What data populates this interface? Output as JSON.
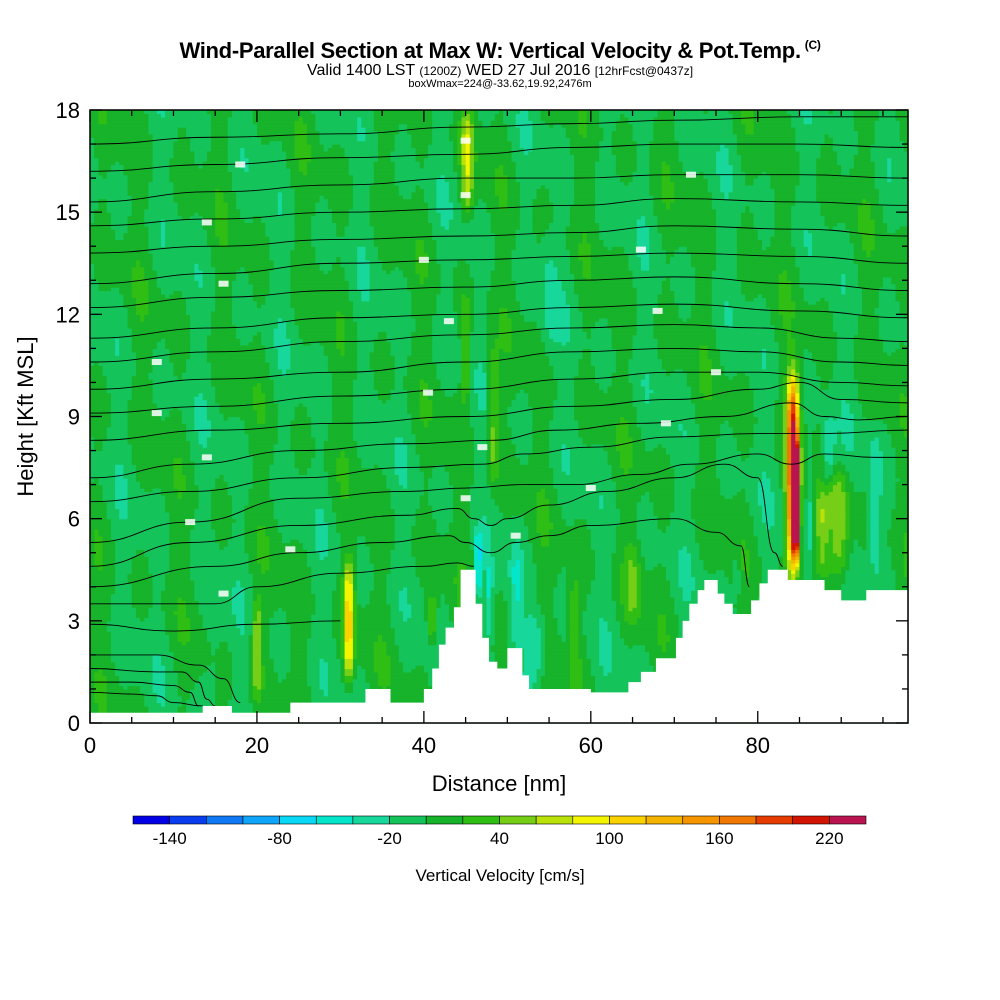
{
  "title": {
    "main": "Wind-Parallel Section at Max W: Vertical Velocity & Pot.Temp.",
    "copyright": "(C)",
    "valid_prefix": "Valid 1400 LST",
    "valid_z": "(1200Z)",
    "valid_date": "WED 27 Jul 2016",
    "valid_fcst": "[12hrFcst@0437z]",
    "box_info": "boxWmax=224@-33.62,19.92,2476m"
  },
  "chart_data": {
    "type": "heatmap",
    "xlabel": "Distance [nm]",
    "ylabel": "Height [Kft MSL]",
    "xlim": [
      0,
      98
    ],
    "ylim": [
      0,
      18
    ],
    "x_ticks": [
      0,
      20,
      40,
      60,
      80
    ],
    "y_ticks": [
      0,
      3,
      6,
      9,
      12,
      15,
      18
    ],
    "background_w": 0,
    "terrain": [
      [
        0,
        0.3
      ],
      [
        10,
        0.3
      ],
      [
        13.5,
        0.3
      ],
      [
        13.5,
        0.5
      ],
      [
        17,
        0.5
      ],
      [
        17,
        0.3
      ],
      [
        24,
        0.3
      ],
      [
        24,
        0.6
      ],
      [
        33,
        0.6
      ],
      [
        33,
        1.0
      ],
      [
        36,
        1.0
      ],
      [
        36,
        0.6
      ],
      [
        40,
        0.6
      ],
      [
        40,
        1.0
      ],
      [
        41,
        1.0
      ],
      [
        41,
        1.6
      ],
      [
        41.8,
        1.6
      ],
      [
        41.8,
        2.3
      ],
      [
        42.6,
        2.3
      ],
      [
        42.6,
        2.8
      ],
      [
        43.6,
        2.8
      ],
      [
        43.6,
        3.4
      ],
      [
        44.4,
        3.4
      ],
      [
        44.4,
        4.5
      ],
      [
        46.2,
        4.5
      ],
      [
        46.2,
        3.5
      ],
      [
        47,
        3.5
      ],
      [
        47,
        2.5
      ],
      [
        47.8,
        2.5
      ],
      [
        47.8,
        1.8
      ],
      [
        48.8,
        1.8
      ],
      [
        48.8,
        1.6
      ],
      [
        50,
        1.6
      ],
      [
        50,
        2.2
      ],
      [
        51.8,
        2.2
      ],
      [
        51.8,
        1.4
      ],
      [
        52.6,
        1.4
      ],
      [
        52.6,
        1.0
      ],
      [
        60,
        1.0
      ],
      [
        60,
        0.9
      ],
      [
        64.5,
        0.9
      ],
      [
        64.5,
        1.2
      ],
      [
        66,
        1.2
      ],
      [
        66,
        1.5
      ],
      [
        67.8,
        1.5
      ],
      [
        67.8,
        1.9
      ],
      [
        70.2,
        1.9
      ],
      [
        70.2,
        2.5
      ],
      [
        71,
        2.5
      ],
      [
        71,
        3.0
      ],
      [
        71.8,
        3.0
      ],
      [
        71.8,
        3.5
      ],
      [
        72.8,
        3.5
      ],
      [
        72.8,
        3.9
      ],
      [
        73.6,
        3.9
      ],
      [
        73.6,
        4.2
      ],
      [
        75.2,
        4.2
      ],
      [
        75.2,
        3.8
      ],
      [
        76,
        3.8
      ],
      [
        76,
        3.5
      ],
      [
        77,
        3.5
      ],
      [
        77,
        3.2
      ],
      [
        79.2,
        3.2
      ],
      [
        79.2,
        3.6
      ],
      [
        80.2,
        3.6
      ],
      [
        80.2,
        4.1
      ],
      [
        81.2,
        4.1
      ],
      [
        81.2,
        4.5
      ],
      [
        83.6,
        4.5
      ],
      [
        83.6,
        4.2
      ],
      [
        88,
        4.2
      ],
      [
        88,
        3.9
      ],
      [
        90,
        3.9
      ],
      [
        90,
        3.6
      ],
      [
        93,
        3.6
      ],
      [
        93,
        3.9
      ],
      [
        98,
        3.9
      ]
    ],
    "updrafts": [
      {
        "x": 84.2,
        "zb": 4.5,
        "zt": 10.2,
        "w": 6,
        "peak": 224
      },
      {
        "x": 84.6,
        "zb": 4.8,
        "zt": 8.2,
        "w": 3,
        "peak": 200
      },
      {
        "x": 31.0,
        "zb": 1.3,
        "zt": 4.8,
        "w": 5,
        "peak": 110
      },
      {
        "x": 20.0,
        "zb": 0.8,
        "zt": 3.7,
        "w": 5,
        "peak": 60
      },
      {
        "x": 45.2,
        "zb": 15,
        "zt": 18,
        "w": 6,
        "peak": 70
      },
      {
        "x": 45.0,
        "zb": 9.3,
        "zt": 12.5,
        "w": 4,
        "peak": 50
      },
      {
        "x": 48.3,
        "zb": 7,
        "zt": 11,
        "w": 5,
        "peak": 50
      },
      {
        "x": 89.8,
        "zb": 4.3,
        "zt": 7.5,
        "w": 10,
        "peak": 55
      },
      {
        "x": 87.6,
        "zb": 4.4,
        "zt": 6.8,
        "w": 6,
        "peak": 45
      },
      {
        "x": 41.0,
        "zb": 2.3,
        "zt": 3.8,
        "w": 5,
        "peak": 45
      },
      {
        "x": 58.0,
        "zb": 1.0,
        "zt": 4.4,
        "w": 6,
        "peak": 35
      },
      {
        "x": 65.0,
        "zb": 3.0,
        "zt": 5.3,
        "w": 8,
        "peak": 35
      }
    ],
    "downdrafts": [
      {
        "x": 46.5,
        "zb": 3.6,
        "zt": 5.6,
        "w": 3,
        "peak": -80
      },
      {
        "x": 47.8,
        "zb": 2.5,
        "zt": 4.8,
        "w": 4,
        "peak": -40
      },
      {
        "x": 53.3,
        "zb": 1.1,
        "zt": 3.2,
        "w": 10,
        "peak": -40
      },
      {
        "x": 51.0,
        "zb": 2.0,
        "zt": 5.3,
        "w": 6,
        "peak": -30
      },
      {
        "x": 88.5,
        "zb": 7.0,
        "zt": 9.0,
        "w": 6,
        "peak": -45
      },
      {
        "x": 94.0,
        "zb": 4.5,
        "zt": 8.5,
        "w": 6,
        "peak": -35
      },
      {
        "x": 86.3,
        "zb": 5.0,
        "zt": 8.8,
        "w": 3,
        "peak": -25
      },
      {
        "x": 77.5,
        "zb": 3.7,
        "zt": 5.0,
        "w": 4,
        "peak": -25
      },
      {
        "x": 55.0,
        "zb": 10.5,
        "zt": 14.5,
        "w": 8,
        "peak": -20
      },
      {
        "x": 15.0,
        "zb": 0.5,
        "zt": 4.0,
        "w": 10,
        "peak": -15
      }
    ],
    "isentropes": [
      [
        [
          0,
          0.9
        ],
        [
          5,
          0.85
        ],
        [
          8,
          0.8
        ],
        [
          10,
          0.6
        ],
        [
          13.5,
          0.5
        ]
      ],
      [
        [
          0,
          1.2
        ],
        [
          5,
          1.2
        ],
        [
          10,
          1.1
        ],
        [
          12,
          0.9
        ],
        [
          13,
          0.5
        ]
      ],
      [
        [
          0,
          1.6
        ],
        [
          8,
          1.5
        ],
        [
          11,
          1.5
        ],
        [
          13,
          1.2
        ],
        [
          14,
          0.7
        ],
        [
          15,
          0.5
        ]
      ],
      [
        [
          0,
          2.0
        ],
        [
          8,
          2.0
        ],
        [
          13,
          1.7
        ],
        [
          16,
          1.3
        ],
        [
          18,
          0.6
        ]
      ],
      [
        [
          0,
          2.9
        ],
        [
          10,
          2.7
        ],
        [
          20,
          2.9
        ],
        [
          30,
          3.0
        ]
      ],
      [
        [
          0,
          3.5
        ],
        [
          15,
          3.5
        ],
        [
          20,
          4.0
        ],
        [
          30,
          4.4
        ],
        [
          40,
          4.6
        ],
        [
          44,
          4.7
        ],
        [
          46,
          4.6
        ]
      ],
      [
        [
          0,
          4.0
        ],
        [
          15,
          4.6
        ],
        [
          25,
          5.0
        ],
        [
          35,
          5.3
        ],
        [
          43,
          5.5
        ],
        [
          45,
          5.3
        ],
        [
          48,
          5.0
        ],
        [
          51,
          5.3
        ],
        [
          55,
          5.5
        ],
        [
          60,
          5.8
        ],
        [
          70,
          6.0
        ],
        [
          75,
          5.6
        ],
        [
          78,
          5.2
        ],
        [
          79,
          4.0
        ]
      ],
      [
        [
          0,
          4.6
        ],
        [
          12,
          5.3
        ],
        [
          25,
          5.8
        ],
        [
          38,
          6.1
        ],
        [
          44,
          6.3
        ],
        [
          46,
          6.0
        ],
        [
          48,
          5.8
        ],
        [
          50,
          6.0
        ],
        [
          55,
          6.4
        ],
        [
          62,
          6.8
        ],
        [
          70,
          7.2
        ],
        [
          76,
          7.6
        ],
        [
          80,
          7.2
        ],
        [
          82,
          5.0
        ],
        [
          83,
          4.6
        ]
      ],
      [
        [
          0,
          5.3
        ],
        [
          12,
          5.9
        ],
        [
          25,
          6.6
        ],
        [
          38,
          6.8
        ],
        [
          45,
          6.9
        ],
        [
          52,
          7.0
        ],
        [
          58,
          7.0
        ],
        [
          66,
          7.3
        ],
        [
          72,
          7.6
        ],
        [
          80,
          7.9
        ],
        [
          84,
          7.6
        ],
        [
          88,
          7.9
        ],
        [
          94,
          7.8
        ],
        [
          98,
          7.8
        ]
      ],
      [
        [
          0,
          6.5
        ],
        [
          12,
          6.8
        ],
        [
          25,
          7.2
        ],
        [
          38,
          7.5
        ],
        [
          47,
          7.6
        ],
        [
          52,
          7.9
        ],
        [
          60,
          8.1
        ],
        [
          70,
          8.4
        ],
        [
          80,
          8.5
        ],
        [
          88,
          8.5
        ],
        [
          98,
          8.6
        ]
      ],
      [
        [
          0,
          7.2
        ],
        [
          12,
          7.6
        ],
        [
          25,
          8.0
        ],
        [
          38,
          8.2
        ],
        [
          48,
          8.3
        ],
        [
          56,
          8.6
        ],
        [
          66,
          8.8
        ],
        [
          76,
          9.0
        ],
        [
          84,
          9.4
        ],
        [
          88,
          9.0
        ],
        [
          92,
          8.9
        ],
        [
          98,
          9.0
        ]
      ],
      [
        [
          0,
          8.3
        ],
        [
          15,
          8.6
        ],
        [
          30,
          8.8
        ],
        [
          45,
          9.0
        ],
        [
          58,
          9.3
        ],
        [
          70,
          9.5
        ],
        [
          80,
          9.8
        ],
        [
          85,
          10.0
        ],
        [
          90,
          9.5
        ],
        [
          98,
          9.4
        ]
      ],
      [
        [
          0,
          9.1
        ],
        [
          15,
          9.3
        ],
        [
          30,
          9.6
        ],
        [
          45,
          9.8
        ],
        [
          58,
          10.1
        ],
        [
          70,
          10.3
        ],
        [
          80,
          10.3
        ],
        [
          90,
          10.0
        ],
        [
          98,
          9.9
        ]
      ],
      [
        [
          0,
          9.8
        ],
        [
          15,
          10.1
        ],
        [
          30,
          10.3
        ],
        [
          45,
          10.6
        ],
        [
          58,
          10.9
        ],
        [
          70,
          11.0
        ],
        [
          80,
          10.9
        ],
        [
          90,
          10.6
        ],
        [
          98,
          10.5
        ]
      ],
      [
        [
          0,
          10.6
        ],
        [
          15,
          10.9
        ],
        [
          30,
          11.2
        ],
        [
          45,
          11.4
        ],
        [
          58,
          11.6
        ],
        [
          70,
          11.7
        ],
        [
          80,
          11.6
        ],
        [
          90,
          11.3
        ],
        [
          98,
          11.2
        ]
      ],
      [
        [
          0,
          11.3
        ],
        [
          15,
          11.6
        ],
        [
          30,
          11.9
        ],
        [
          45,
          12.0
        ],
        [
          58,
          12.2
        ],
        [
          70,
          12.3
        ],
        [
          85,
          12.1
        ],
        [
          98,
          11.9
        ]
      ],
      [
        [
          0,
          12.2
        ],
        [
          15,
          12.5
        ],
        [
          30,
          12.7
        ],
        [
          45,
          12.8
        ],
        [
          58,
          13.0
        ],
        [
          70,
          13.1
        ],
        [
          85,
          12.9
        ],
        [
          98,
          12.7
        ]
      ],
      [
        [
          0,
          12.9
        ],
        [
          15,
          13.2
        ],
        [
          30,
          13.5
        ],
        [
          45,
          13.6
        ],
        [
          58,
          13.7
        ],
        [
          70,
          13.8
        ],
        [
          85,
          13.7
        ],
        [
          98,
          13.5
        ]
      ],
      [
        [
          0,
          13.8
        ],
        [
          15,
          14.0
        ],
        [
          30,
          14.2
        ],
        [
          45,
          14.3
        ],
        [
          58,
          14.4
        ],
        [
          70,
          14.6
        ],
        [
          85,
          14.5
        ],
        [
          98,
          14.3
        ]
      ],
      [
        [
          0,
          14.6
        ],
        [
          15,
          14.8
        ],
        [
          30,
          15.0
        ],
        [
          45,
          15.1
        ],
        [
          58,
          15.2
        ],
        [
          70,
          15.4
        ],
        [
          85,
          15.3
        ],
        [
          98,
          15.2
        ]
      ],
      [
        [
          0,
          15.3
        ],
        [
          15,
          15.6
        ],
        [
          30,
          15.8
        ],
        [
          45,
          16.0
        ],
        [
          58,
          16.0
        ],
        [
          70,
          16.1
        ],
        [
          85,
          16.1
        ],
        [
          98,
          16.0
        ]
      ],
      [
        [
          0,
          16.2
        ],
        [
          15,
          16.4
        ],
        [
          30,
          16.6
        ],
        [
          45,
          16.7
        ],
        [
          58,
          16.9
        ],
        [
          70,
          17.0
        ],
        [
          85,
          17.0
        ],
        [
          98,
          16.9
        ]
      ],
      [
        [
          0,
          17.0
        ],
        [
          15,
          17.2
        ],
        [
          30,
          17.3
        ],
        [
          45,
          17.5
        ],
        [
          58,
          17.6
        ],
        [
          70,
          17.7
        ],
        [
          85,
          17.8
        ],
        [
          98,
          17.8
        ]
      ]
    ],
    "colorbar": {
      "label": "Vertical Velocity [cm/s]",
      "levels": [
        -160,
        -140,
        -120,
        -100,
        -80,
        -60,
        -40,
        -20,
        0,
        20,
        40,
        60,
        80,
        100,
        120,
        140,
        160,
        180,
        200,
        220,
        240
      ],
      "colors": [
        "#0000e6",
        "#0a3cf0",
        "#0f78f5",
        "#0fa5fa",
        "#08d8f5",
        "#04e6cc",
        "#18d79b",
        "#14c45a",
        "#17b32a",
        "#2fbe14",
        "#76ce16",
        "#bae10a",
        "#f5f500",
        "#fad200",
        "#f5b400",
        "#f59600",
        "#f07800",
        "#e63c00",
        "#d21400",
        "#b91450"
      ],
      "tick_values": [
        -140,
        -80,
        -20,
        40,
        100,
        160,
        220
      ],
      "tick_labels": [
        "-140",
        "-80",
        "-20",
        "40",
        "100",
        "160",
        "220"
      ]
    }
  }
}
